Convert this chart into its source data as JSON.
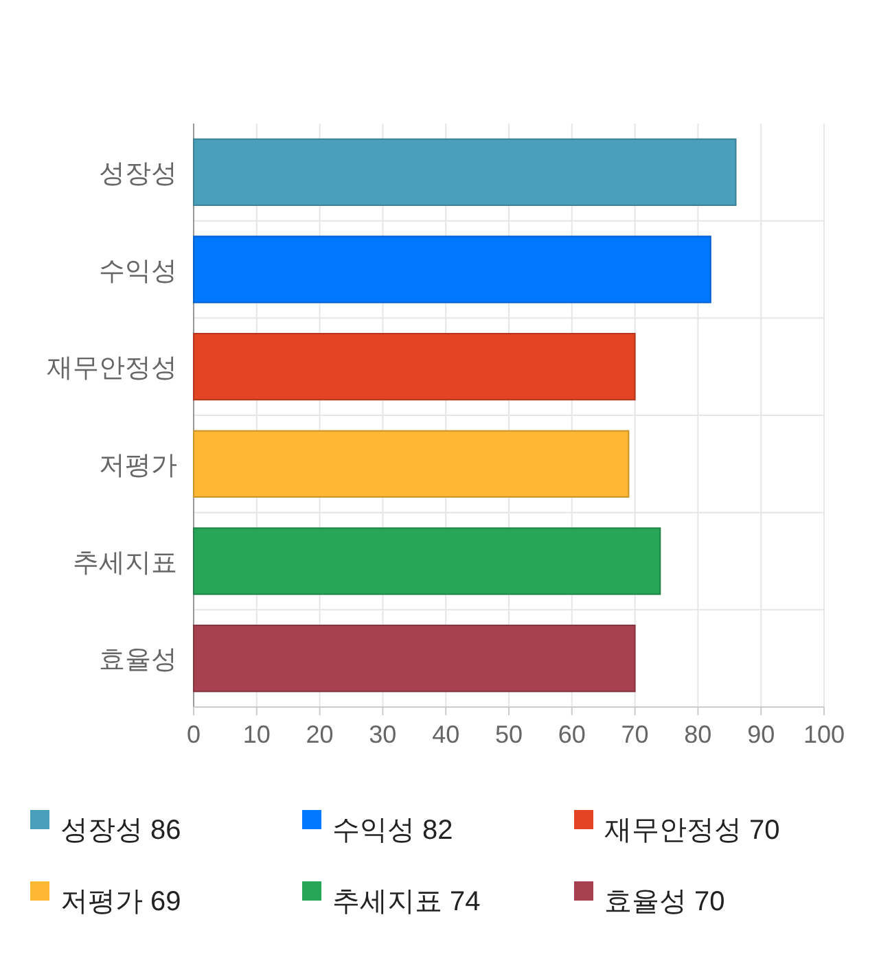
{
  "chart_data": {
    "type": "bar",
    "orientation": "horizontal",
    "categories": [
      "성장성",
      "수익성",
      "재무안정성",
      "저평가",
      "추세지표",
      "효율성"
    ],
    "series": [
      {
        "name": "성장성 86",
        "color": "#4aa0bb",
        "values": [
          86,
          null,
          null,
          null,
          null,
          null
        ]
      },
      {
        "name": "수익성 82",
        "color": "#0077ff",
        "values": [
          null,
          82,
          null,
          null,
          null,
          null
        ]
      },
      {
        "name": "재무안정성 70",
        "color": "#e24424",
        "values": [
          null,
          null,
          70,
          null,
          null,
          null
        ]
      },
      {
        "name": "저평가 69",
        "color": "#ffb833",
        "values": [
          null,
          null,
          null,
          69,
          null,
          null
        ]
      },
      {
        "name": "추세지표 74",
        "color": "#28a658",
        "values": [
          null,
          null,
          null,
          null,
          74,
          null
        ]
      },
      {
        "name": "효율성 70",
        "color": "#a8414f",
        "values": [
          null,
          null,
          null,
          null,
          null,
          70
        ]
      }
    ],
    "xlim": [
      0,
      100
    ],
    "xticks": [
      0,
      10,
      20,
      30,
      40,
      50,
      60,
      70,
      80,
      90,
      100
    ],
    "grid": true,
    "legend": "bottom"
  }
}
